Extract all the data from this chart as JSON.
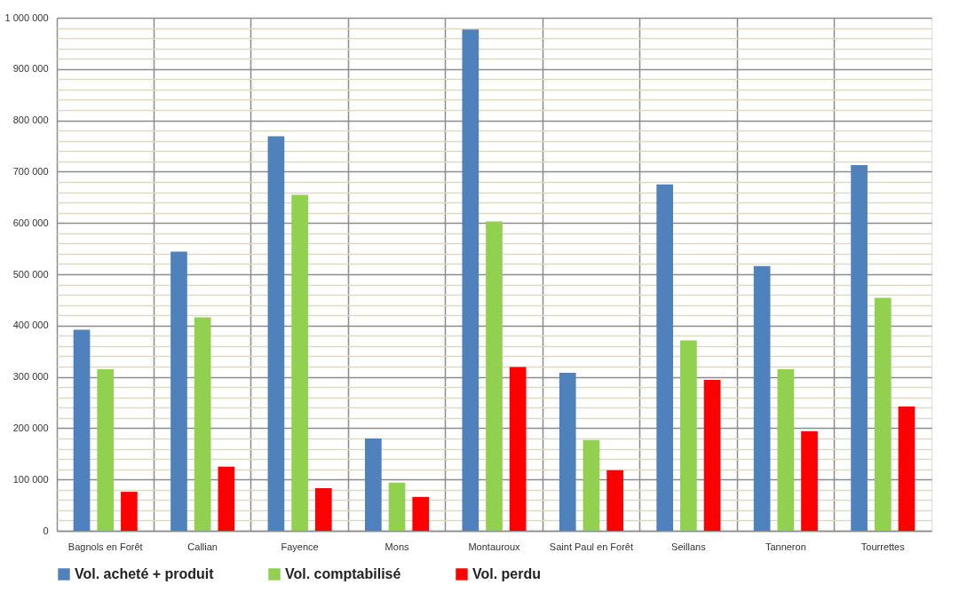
{
  "chart_data": {
    "type": "bar",
    "categories": [
      "Bagnols en Forêt",
      "Callian",
      "Fayence",
      "Mons",
      "Montauroux",
      "Saint Paul en Forêt",
      "Seillans",
      "Tanneron",
      "Tourrettes"
    ],
    "series": [
      {
        "name": "Vol. acheté + produit",
        "color": "#4f81bd",
        "values": [
          392000,
          544000,
          769000,
          180000,
          977000,
          308000,
          675000,
          516000,
          713000
        ]
      },
      {
        "name": "Vol. comptabilisé",
        "color": "#92d050",
        "values": [
          315000,
          416000,
          655000,
          94000,
          603000,
          177000,
          371000,
          315000,
          454000
        ]
      },
      {
        "name": "Vol. perdu",
        "color": "#ff0000",
        "values": [
          76000,
          125000,
          83000,
          66000,
          319000,
          118000,
          294000,
          194000,
          242000
        ]
      }
    ],
    "ylim": [
      0,
      1000000
    ],
    "yticks": [
      {
        "value": 0,
        "label": "0"
      },
      {
        "value": 20000,
        "label": null
      },
      {
        "value": 40000,
        "label": null
      },
      {
        "value": 60000,
        "label": null
      },
      {
        "value": 80000,
        "label": null
      },
      {
        "value": 100000,
        "label": "100 000"
      },
      {
        "value": 120000,
        "label": null
      },
      {
        "value": 140000,
        "label": null
      },
      {
        "value": 160000,
        "label": null
      },
      {
        "value": 180000,
        "label": null
      },
      {
        "value": 200000,
        "label": "200 000"
      },
      {
        "value": 220000,
        "label": null
      },
      {
        "value": 240000,
        "label": null
      },
      {
        "value": 260000,
        "label": null
      },
      {
        "value": 280000,
        "label": null
      },
      {
        "value": 300000,
        "label": "300 000"
      },
      {
        "value": 320000,
        "label": null
      },
      {
        "value": 340000,
        "label": null
      },
      {
        "value": 360000,
        "label": null
      },
      {
        "value": 380000,
        "label": null
      },
      {
        "value": 400000,
        "label": "400 000"
      },
      {
        "value": 420000,
        "label": null
      },
      {
        "value": 440000,
        "label": null
      },
      {
        "value": 460000,
        "label": null
      },
      {
        "value": 480000,
        "label": null
      },
      {
        "value": 500000,
        "label": "500 000"
      },
      {
        "value": 520000,
        "label": null
      },
      {
        "value": 540000,
        "label": null
      },
      {
        "value": 560000,
        "label": null
      },
      {
        "value": 580000,
        "label": null
      },
      {
        "value": 600000,
        "label": "600 000"
      },
      {
        "value": 620000,
        "label": null
      },
      {
        "value": 640000,
        "label": null
      },
      {
        "value": 660000,
        "label": null
      },
      {
        "value": 680000,
        "label": null
      },
      {
        "value": 700000,
        "label": "700 000"
      },
      {
        "value": 720000,
        "label": null
      },
      {
        "value": 740000,
        "label": null
      },
      {
        "value": 760000,
        "label": null
      },
      {
        "value": 780000,
        "label": null
      },
      {
        "value": 800000,
        "label": "800 000"
      },
      {
        "value": 820000,
        "label": null
      },
      {
        "value": 840000,
        "label": null
      },
      {
        "value": 860000,
        "label": null
      },
      {
        "value": 880000,
        "label": null
      },
      {
        "value": 900000,
        "label": "900 000"
      },
      {
        "value": 920000,
        "label": null
      },
      {
        "value": 940000,
        "label": null
      },
      {
        "value": 960000,
        "label": null
      },
      {
        "value": 980000,
        "label": null
      },
      {
        "value": 1000000,
        "label": "1 000 000"
      }
    ],
    "grid": true,
    "legend": "bottom"
  }
}
